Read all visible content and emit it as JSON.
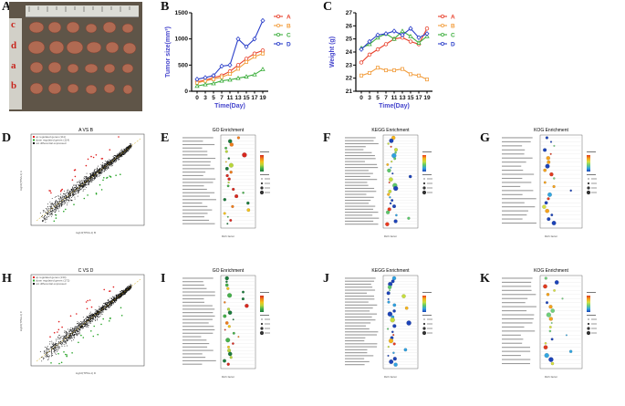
{
  "panels": {
    "A": {
      "label": "A",
      "row_labels": [
        "c",
        "d",
        "a",
        "b"
      ]
    },
    "B": {
      "label": "B"
    },
    "C": {
      "label": "C"
    },
    "D": {
      "label": "D",
      "title": "A VS B",
      "legend": [
        "up regulated genes (111)",
        "down regulated genes (114)",
        "not differential expressed"
      ],
      "xlabel": "log10(TPM+1) B",
      "ylabel": "log10(TPM+1) A"
    },
    "E": {
      "label": "E",
      "title": "GO Enrichment",
      "xlabel": "Rich factor"
    },
    "F": {
      "label": "F",
      "title": "KEGG Enrichment",
      "xlabel": "Rich factor"
    },
    "G": {
      "label": "G",
      "title": "KOG Enrichment",
      "xlabel": "Rich factor"
    },
    "H": {
      "label": "H",
      "title": "C VS D",
      "legend": [
        "up regulated genes (134)",
        "down regulated genes (172)",
        "not differential expressed"
      ],
      "xlabel": "log10(TPM+1) D",
      "ylabel": "log10(TPM+1) C"
    },
    "I": {
      "label": "I",
      "title": "GO Enrichment",
      "xlabel": "Rich factor"
    },
    "J": {
      "label": "J",
      "title": "KEGG Enrichment",
      "xlabel": "Rich factor"
    },
    "K": {
      "label": "K",
      "title": "KOG Enrichment",
      "xlabel": "Rich factor"
    }
  },
  "chart_data": [
    {
      "type": "line",
      "panel": "B",
      "xlabel": "Time(Day)",
      "ylabel": "Tumor size(mm³)",
      "x": [
        "0",
        "3",
        "5",
        "7",
        "11",
        "13",
        "15",
        "17",
        "19"
      ],
      "ylim": [
        0,
        1500
      ],
      "yticks": [
        0,
        500,
        1000,
        1500
      ],
      "series": [
        {
          "name": "A",
          "color": "#e8412c",
          "marker": "circle",
          "values": [
            180,
            210,
            260,
            300,
            380,
            500,
            620,
            720,
            780
          ]
        },
        {
          "name": "B",
          "color": "#f29d3c",
          "marker": "square",
          "values": [
            160,
            200,
            230,
            270,
            330,
            430,
            560,
            660,
            720
          ]
        },
        {
          "name": "C",
          "color": "#3dae3d",
          "marker": "triangle",
          "values": [
            100,
            130,
            150,
            200,
            220,
            250,
            280,
            320,
            420
          ]
        },
        {
          "name": "D",
          "color": "#2a3ec9",
          "marker": "diamond",
          "values": [
            230,
            260,
            300,
            480,
            500,
            1000,
            850,
            1000,
            1350
          ]
        }
      ]
    },
    {
      "type": "line",
      "panel": "C",
      "xlabel": "Time(Day)",
      "ylabel": "Weight (g)",
      "x": [
        "0",
        "3",
        "5",
        "7",
        "11",
        "13",
        "15",
        "17",
        "19"
      ],
      "ylim": [
        21,
        27
      ],
      "yticks": [
        21,
        22,
        23,
        24,
        25,
        26,
        27
      ],
      "series": [
        {
          "name": "A",
          "color": "#e8412c",
          "marker": "circle",
          "values": [
            23.2,
            23.8,
            24.2,
            24.6,
            25.0,
            25.1,
            24.8,
            24.6,
            25.8
          ]
        },
        {
          "name": "B",
          "color": "#f29d3c",
          "marker": "square",
          "values": [
            22.2,
            22.4,
            22.8,
            22.6,
            22.6,
            22.7,
            22.3,
            22.2,
            21.9
          ]
        },
        {
          "name": "C",
          "color": "#3dae3d",
          "marker": "triangle",
          "values": [
            24.3,
            24.6,
            25.1,
            25.4,
            25.0,
            25.6,
            25.2,
            24.7,
            25.2
          ]
        },
        {
          "name": "D",
          "color": "#2a3ec9",
          "marker": "diamond",
          "values": [
            24.2,
            24.8,
            25.3,
            25.4,
            25.6,
            25.3,
            25.8,
            25.1,
            25.4
          ]
        }
      ]
    }
  ],
  "colors": {
    "up": "#e02020",
    "down": "#2aa52a",
    "ns": "#111111"
  }
}
